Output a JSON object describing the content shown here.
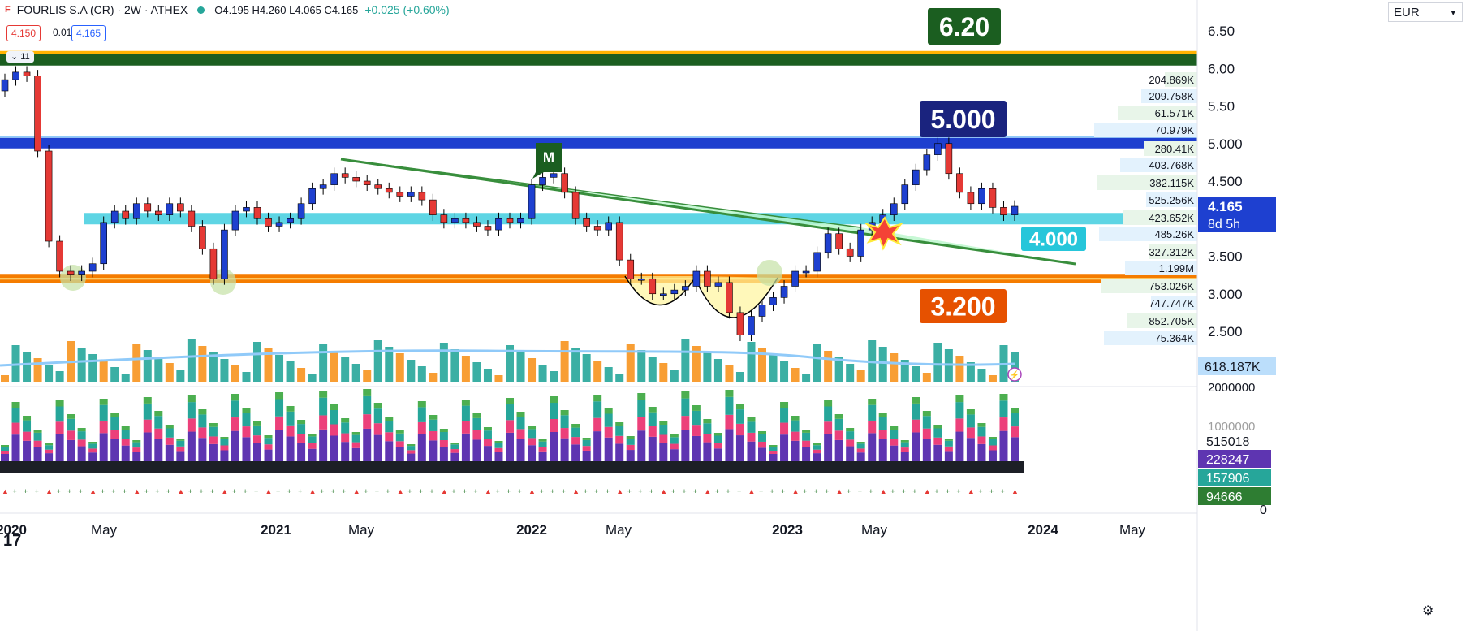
{
  "header": {
    "symbol": "FOURLIS S.A (CR) · 2W · ATHEX",
    "ohlc": "O4.195 H4.260 L4.065 C4.165",
    "change": "+0.025 (+0.60%)",
    "bid": "4.150",
    "spread": "0.015",
    "ask": "4.165",
    "indicators_count": "11",
    "currency": "EUR"
  },
  "colors": {
    "up": "#1e40d0",
    "down": "#e53935",
    "green": "#388e3c",
    "blue_band": "#2962ff",
    "cyan": "#4dd0e1",
    "orange": "#f57c00",
    "gold": "#ffb300"
  },
  "price_axis": {
    "labels": [
      "6.50",
      "6.00",
      "5.50",
      "5.000",
      "4.500",
      "4.000",
      "3.500",
      "3.000",
      "2.500"
    ],
    "values": [
      6.5,
      6.0,
      5.5,
      5.0,
      4.5,
      4.0,
      3.5,
      3.0,
      2.5
    ]
  },
  "time_axis": {
    "labels": [
      "2020",
      "May",
      "2021",
      "May",
      "2022",
      "May",
      "2023",
      "May",
      "2024",
      "May"
    ]
  },
  "annotations": {
    "resistance_label": "6.20",
    "level_5": "5.000",
    "level_4": "4.000",
    "level_32": "3.200",
    "pattern_label": "M",
    "last_price": "4.165",
    "countdown": "8d 5h"
  },
  "volume_profile": [
    "204.869K",
    "209.758K",
    "61.571K",
    "70.979K",
    "280.41K",
    "403.768K",
    "382.115K",
    "525.256K",
    "423.652K",
    "485.26K",
    "327.312K",
    "1.199M",
    "753.026K",
    "747.747K",
    "852.705K",
    "75.364K"
  ],
  "volume_label": "618.187K",
  "lower_pane": {
    "axis": [
      "2000000",
      "1000000"
    ],
    "labels": [
      "515018",
      "228247",
      "157906",
      "94666"
    ],
    "zero": "0"
  },
  "colors_pane": {
    "purple": "#5e35b1",
    "teal": "#26a69a",
    "pink": "#ec407a",
    "lightgreen": "#4caf50"
  },
  "chart_data": {
    "type": "candlestick",
    "x": [
      "2020-01",
      "2020-01",
      "2020-02",
      "2020-02",
      "2020-03",
      "2020-03",
      "2020-04",
      "2020-04",
      "2020-05",
      "2020-05",
      "2020-06",
      "2020-06",
      "2020-07",
      "2020-07",
      "2020-08",
      "2020-08",
      "2020-09",
      "2020-09",
      "2020-10",
      "2020-10",
      "2020-11",
      "2020-11",
      "2020-12",
      "2020-12",
      "2021-01",
      "2021-01",
      "2021-02",
      "2021-02",
      "2021-03",
      "2021-03",
      "2021-04",
      "2021-04",
      "2021-05",
      "2021-05",
      "2021-06",
      "2021-06",
      "2021-07",
      "2021-07",
      "2021-08",
      "2021-08",
      "2021-09",
      "2021-09",
      "2021-10",
      "2021-10",
      "2021-11",
      "2021-11",
      "2021-12",
      "2021-12",
      "2022-01",
      "2022-01",
      "2022-02",
      "2022-02",
      "2022-03",
      "2022-03",
      "2022-04",
      "2022-04",
      "2022-05",
      "2022-05",
      "2022-06",
      "2022-06",
      "2022-07",
      "2022-07",
      "2022-08",
      "2022-08",
      "2022-09",
      "2022-09",
      "2022-10",
      "2022-10",
      "2022-11",
      "2022-11",
      "2022-12",
      "2022-12",
      "2023-01",
      "2023-01",
      "2023-02",
      "2023-02",
      "2023-03",
      "2023-03",
      "2023-04",
      "2023-04",
      "2023-05",
      "2023-05",
      "2023-06",
      "2023-06",
      "2023-07",
      "2023-07",
      "2023-08",
      "2023-08",
      "2023-09",
      "2023-09",
      "2023-10",
      "2023-10",
      "2023-11"
    ],
    "close": [
      5.85,
      5.95,
      5.9,
      4.9,
      3.7,
      3.3,
      3.25,
      3.3,
      3.4,
      3.95,
      4.1,
      4.0,
      4.2,
      4.1,
      4.05,
      4.2,
      4.1,
      3.9,
      3.6,
      3.2,
      3.85,
      4.1,
      4.15,
      4.0,
      3.9,
      3.95,
      4.0,
      4.2,
      4.4,
      4.45,
      4.6,
      4.55,
      4.5,
      4.45,
      4.4,
      4.35,
      4.3,
      4.35,
      4.25,
      4.05,
      3.95,
      4.0,
      3.95,
      3.9,
      3.85,
      4.0,
      3.95,
      4.0,
      4.45,
      4.55,
      4.6,
      4.35,
      4.0,
      3.9,
      3.85,
      3.95,
      3.45,
      3.2,
      3.2,
      3.0,
      3.0,
      3.05,
      3.1,
      3.3,
      3.1,
      3.15,
      2.75,
      2.45,
      2.7,
      2.85,
      2.95,
      3.1,
      3.3,
      3.3,
      3.55,
      3.8,
      3.6,
      3.5,
      3.85,
      3.95,
      4.05,
      4.2,
      4.45,
      4.65,
      4.85,
      5.0,
      4.6,
      4.35,
      4.2,
      4.4,
      4.15,
      4.05,
      4.165
    ],
    "ylim": [
      2.2,
      6.7
    ]
  }
}
